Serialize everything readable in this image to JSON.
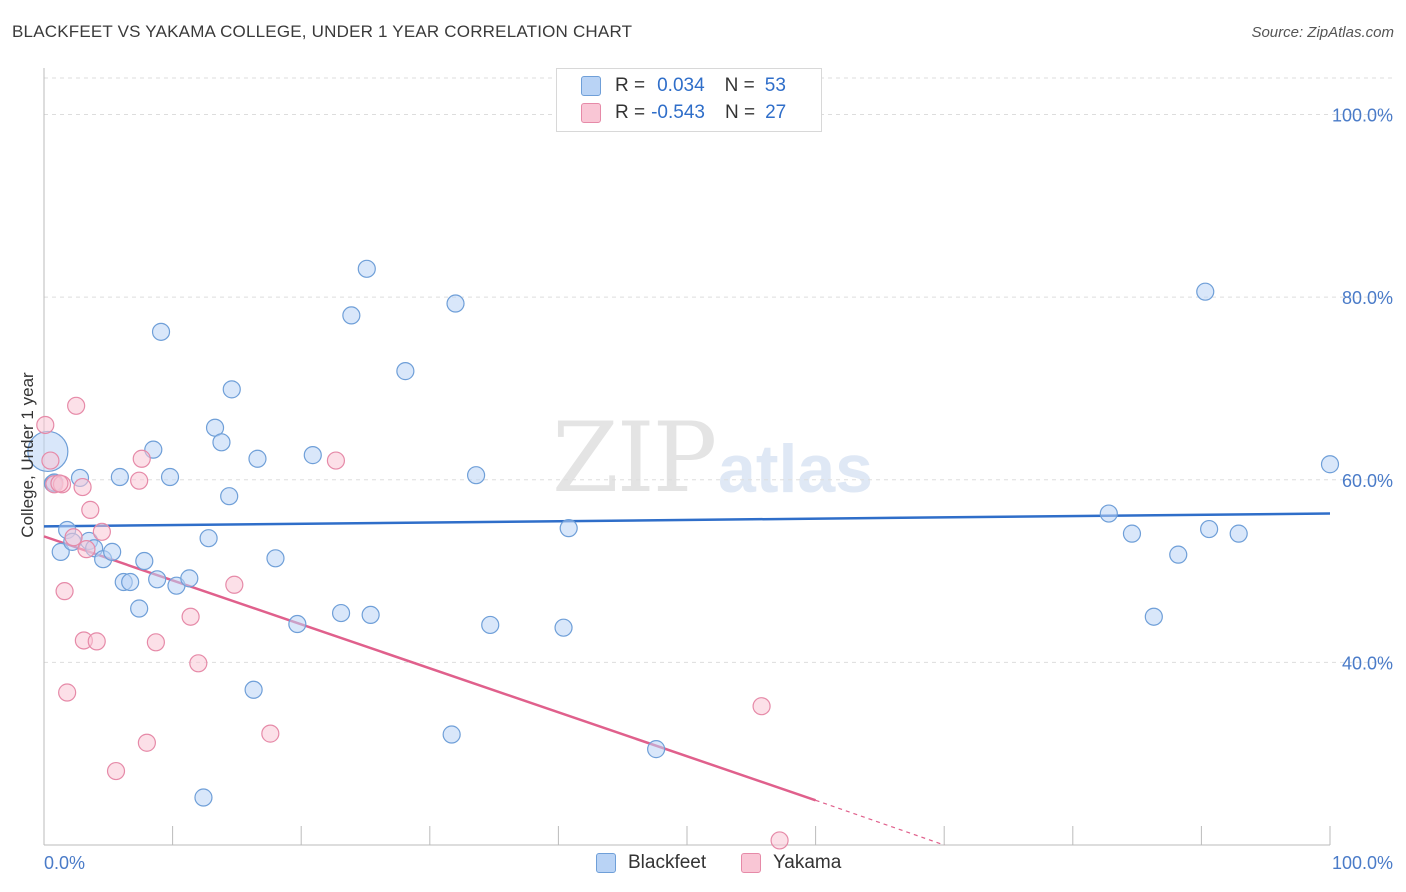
{
  "title": "BLACKFEET VS YAKAMA COLLEGE, UNDER 1 YEAR CORRELATION CHART",
  "source": "Source: ZipAtlas.com",
  "watermark": {
    "zip": "ZIP",
    "atlas": "atlas"
  },
  "colors": {
    "blackfeet_fill": "#b9d3f5",
    "blackfeet_stroke": "#6f9fd8",
    "blackfeet_line": "#2f6ec9",
    "yakama_fill": "#f9c6d5",
    "yakama_stroke": "#e68aa8",
    "yakama_line": "#e0608c"
  },
  "legend": {
    "rows": [
      {
        "r_label": "R =",
        "r_value": "0.034",
        "n_label": "N =",
        "n_value": "53"
      },
      {
        "r_label": "R =",
        "r_value": "-0.543",
        "n_label": "N =",
        "n_value": "27"
      }
    ]
  },
  "bottom_legend": {
    "blackfeet": "Blackfeet",
    "yakama": "Yakama"
  },
  "chart_data": {
    "type": "scatter",
    "title": "BLACKFEET VS YAKAMA COLLEGE, UNDER 1 YEAR CORRELATION CHART",
    "xlabel": "",
    "ylabel": "College, Under 1 year",
    "xlim": [
      0,
      100
    ],
    "ylim": [
      20,
      104
    ],
    "x_tick_labels": [
      "0.0%",
      "100.0%"
    ],
    "y_ticks": [
      40,
      60,
      80,
      100
    ],
    "y_tick_labels": [
      "40.0%",
      "60.0%",
      "80.0%",
      "100.0%"
    ],
    "grid": true,
    "legend_position": "top-center",
    "series": [
      {
        "name": "Blackfeet",
        "points": [
          [
            0.3,
            63.1
          ],
          [
            0.7,
            59.6
          ],
          [
            1.3,
            52.1
          ],
          [
            1.8,
            54.5
          ],
          [
            2.2,
            53.2
          ],
          [
            2.8,
            60.2
          ],
          [
            3.5,
            53.3
          ],
          [
            3.9,
            52.5
          ],
          [
            4.6,
            51.3
          ],
          [
            5.3,
            52.1
          ],
          [
            5.9,
            60.3
          ],
          [
            6.2,
            48.8
          ],
          [
            6.7,
            48.8
          ],
          [
            7.4,
            45.9
          ],
          [
            7.8,
            51.1
          ],
          [
            8.5,
            63.3
          ],
          [
            8.8,
            49.1
          ],
          [
            9.1,
            76.2
          ],
          [
            9.8,
            60.3
          ],
          [
            10.3,
            48.4
          ],
          [
            11.3,
            49.2
          ],
          [
            12.4,
            25.2
          ],
          [
            12.8,
            53.6
          ],
          [
            13.3,
            65.7
          ],
          [
            13.8,
            64.1
          ],
          [
            14.4,
            58.2
          ],
          [
            14.6,
            69.9
          ],
          [
            16.3,
            37.0
          ],
          [
            16.6,
            62.3
          ],
          [
            18.0,
            51.4
          ],
          [
            19.7,
            44.2
          ],
          [
            20.9,
            62.7
          ],
          [
            23.1,
            45.4
          ],
          [
            23.9,
            78.0
          ],
          [
            25.1,
            83.1
          ],
          [
            25.4,
            45.2
          ],
          [
            28.1,
            71.9
          ],
          [
            31.7,
            32.1
          ],
          [
            32.0,
            79.3
          ],
          [
            33.6,
            60.5
          ],
          [
            34.7,
            44.1
          ],
          [
            40.4,
            43.8
          ],
          [
            40.8,
            54.7
          ],
          [
            47.6,
            30.5
          ],
          [
            82.8,
            56.3
          ],
          [
            84.6,
            54.1
          ],
          [
            86.3,
            45.0
          ],
          [
            88.2,
            51.8
          ],
          [
            90.3,
            80.6
          ],
          [
            90.6,
            54.6
          ],
          [
            92.9,
            54.1
          ],
          [
            100.0,
            61.7
          ],
          [
            0.8,
            59.7
          ]
        ],
        "trend": {
          "x": [
            0,
            100
          ],
          "y": [
            54.9,
            56.3
          ]
        }
      },
      {
        "name": "Yakama",
        "points": [
          [
            0.1,
            66.0
          ],
          [
            0.5,
            62.1
          ],
          [
            0.8,
            59.5
          ],
          [
            1.4,
            59.5
          ],
          [
            1.6,
            47.8
          ],
          [
            1.8,
            36.7
          ],
          [
            2.3,
            53.7
          ],
          [
            3.0,
            59.2
          ],
          [
            3.1,
            42.4
          ],
          [
            3.3,
            52.4
          ],
          [
            3.6,
            56.7
          ],
          [
            4.1,
            42.3
          ],
          [
            4.5,
            54.3
          ],
          [
            5.6,
            28.1
          ],
          [
            7.4,
            59.9
          ],
          [
            7.6,
            62.3
          ],
          [
            8.0,
            31.2
          ],
          [
            8.7,
            42.2
          ],
          [
            11.4,
            45.0
          ],
          [
            12.0,
            39.9
          ],
          [
            14.8,
            48.5
          ],
          [
            17.6,
            32.2
          ],
          [
            22.7,
            62.1
          ],
          [
            55.8,
            35.2
          ],
          [
            57.2,
            20.5
          ],
          [
            2.5,
            68.1
          ],
          [
            1.2,
            59.6
          ]
        ],
        "trend": {
          "x": [
            0,
            60
          ],
          "y": [
            53.8,
            24.9
          ]
        },
        "trend_extension": {
          "x": [
            60,
            70
          ],
          "y": [
            24.9,
            20.0
          ]
        }
      }
    ]
  }
}
